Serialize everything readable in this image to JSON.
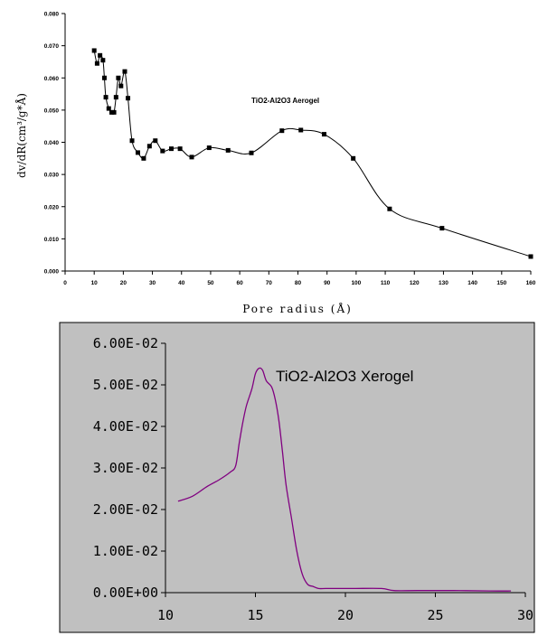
{
  "chart_data": [
    {
      "type": "line",
      "annotation": "TiO2-Al2O3 Aerogel",
      "ylabel": "dv/dR(cm³/g*Å)",
      "xlabel": "Pore radius (Å)",
      "xlim": [
        0,
        160
      ],
      "ylim": [
        0,
        0.08
      ],
      "xticks": [
        0,
        10,
        20,
        30,
        40,
        50,
        60,
        70,
        80,
        90,
        100,
        110,
        120,
        130,
        140,
        150,
        160
      ],
      "yticks": [
        "0.000",
        "0.010",
        "0.020",
        "0.030",
        "0.040",
        "0.050",
        "0.060",
        "0.070",
        "0.080"
      ],
      "grid": false,
      "markers": "square",
      "x": [
        10,
        11,
        12,
        13,
        13.5,
        14,
        15,
        16,
        16.8,
        17.5,
        18.3,
        19.2,
        20.5,
        21.6,
        23,
        25,
        27,
        29,
        31,
        33.5,
        36.5,
        39.5,
        43.5,
        49.5,
        56,
        64,
        74.5,
        81,
        89,
        99,
        111.5,
        129.5,
        160
      ],
      "y": [
        0.0685,
        0.0645,
        0.067,
        0.0655,
        0.06,
        0.054,
        0.0505,
        0.0493,
        0.0493,
        0.054,
        0.06,
        0.0575,
        0.062,
        0.0537,
        0.0405,
        0.0368,
        0.035,
        0.0388,
        0.0405,
        0.0373,
        0.038,
        0.038,
        0.0354,
        0.0383,
        0.0375,
        0.0367,
        0.0436,
        0.0438,
        0.0425,
        0.035,
        0.0193,
        0.0133,
        0.0045
      ]
    },
    {
      "type": "line",
      "annotation": "TiO2-Al2O3 Xerogel",
      "xlim": [
        10,
        30
      ],
      "ylim": [
        0,
        0.06
      ],
      "xticks": [
        "10",
        "15",
        "20",
        "25",
        "30"
      ],
      "yticks": [
        "0.00E+00",
        "1.00E-02",
        "2.00E-02",
        "3.00E-02",
        "4.00E-02",
        "5.00E-02",
        "6.00E-02"
      ],
      "grid": false,
      "x": [
        10.7,
        11.5,
        12.3,
        13.0,
        13.6,
        13.9,
        14.1,
        14.3,
        14.5,
        14.8,
        15.0,
        15.2,
        15.4,
        15.6,
        15.9,
        16.1,
        16.3,
        16.5,
        16.7,
        17.0,
        17.3,
        17.6,
        17.9,
        18.2,
        18.5,
        18.9,
        19.5,
        20.5,
        22.0,
        22.7,
        24.0,
        26.0,
        28.0,
        29.2
      ],
      "y": [
        0.022,
        0.0232,
        0.0255,
        0.0272,
        0.029,
        0.0305,
        0.036,
        0.041,
        0.045,
        0.049,
        0.0527,
        0.054,
        0.0535,
        0.051,
        0.0495,
        0.0465,
        0.0415,
        0.034,
        0.026,
        0.018,
        0.01,
        0.0045,
        0.002,
        0.0015,
        0.001,
        0.001,
        0.001,
        0.001,
        0.001,
        0.0005,
        0.0005,
        0.0005,
        0.0004,
        0.0004
      ],
      "colors": {
        "line": "#800080",
        "plot_bg": "#c0c0c0"
      }
    }
  ]
}
